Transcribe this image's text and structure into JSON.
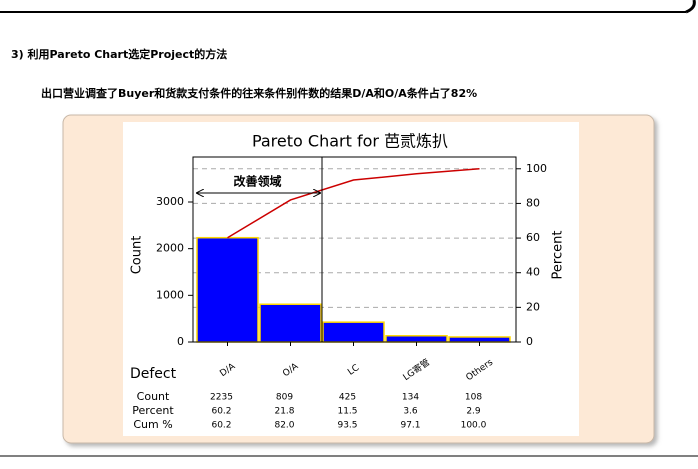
{
  "heading": "3) 利用Pareto Chart选定Project的方法",
  "subheading": "出口营业调查了Buyer和货款支付条件的往来条件别件数的结果D/A和O/A条件占了82%",
  "chart_data": {
    "type": "pareto",
    "title": "Pareto Chart for 芭贰炼扒",
    "xlabel": "Defect",
    "ylabel": "Count",
    "y2label": "Percent",
    "annotation": "改善领域",
    "categories": [
      "D/A",
      "O/A",
      "LC",
      "LG寄管",
      "Others"
    ],
    "series": [
      {
        "name": "Count",
        "color": "#0000ff",
        "values": [
          2235,
          809,
          425,
          134,
          108
        ]
      },
      {
        "name": "Percent",
        "values": [
          60.2,
          21.8,
          11.5,
          3.6,
          2.9
        ]
      },
      {
        "name": "Cum %",
        "color": "#cc0000",
        "axis": "y2",
        "values": [
          60.2,
          82.0,
          93.5,
          97.1,
          100.0
        ],
        "value_labels": [
          "60.2",
          "82.0",
          "93.5",
          "97.1",
          "100.0"
        ]
      }
    ],
    "ylim": [
      0,
      3964
    ],
    "yticks": [
      0,
      1000,
      2000,
      3000
    ],
    "y2lim": [
      0,
      106.8
    ],
    "y2ticks": [
      0,
      20,
      40,
      60,
      80,
      100
    ],
    "grid": true
  }
}
